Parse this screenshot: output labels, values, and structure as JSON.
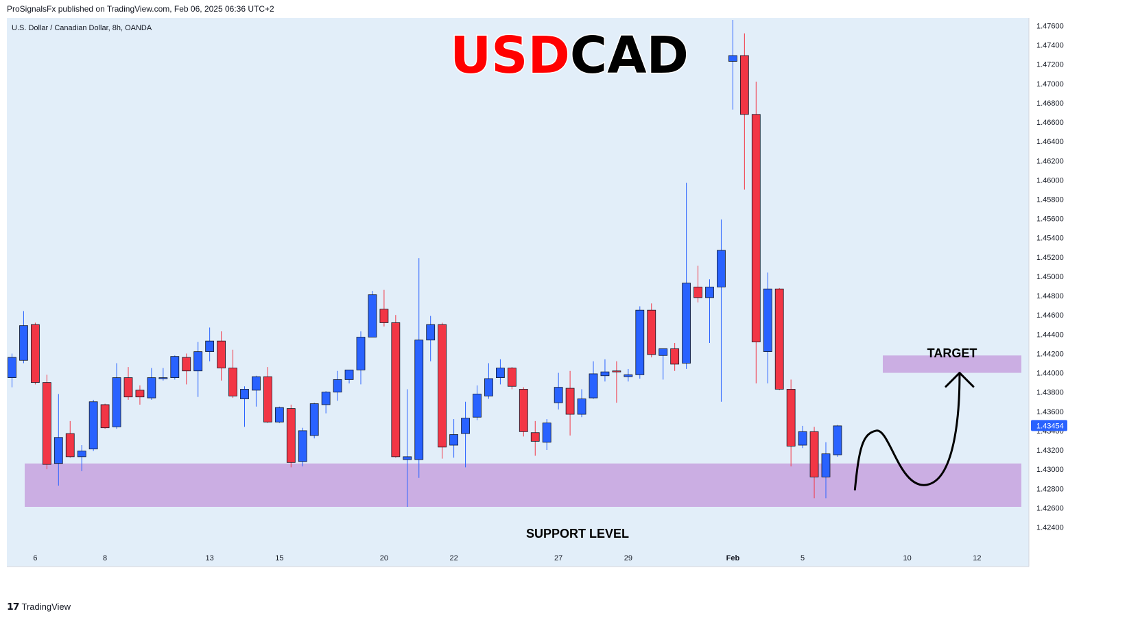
{
  "header": {
    "published": "ProSignalsFx published on TradingView.com, Feb 06, 2025 06:36 UTC+2"
  },
  "footer": {
    "brand": "TradingView",
    "brand_icon": "tradingview-logo-icon"
  },
  "colors": {
    "background": "#e2eef9",
    "up": "#2962ff",
    "down": "#f23645",
    "zone": "#c9a6e0",
    "current_price_bg": "#2962ff"
  },
  "chart_data": {
    "type": "candlestick",
    "symbol_label": "U.S. Dollar / Canadian Dollar, 8h, OANDA",
    "title_part1": "USD",
    "title_part2": "CAD",
    "current_price": "1.43454",
    "ylim": [
      1.4224,
      1.4766
    ],
    "y_ticks": [
      "1.47600",
      "1.47400",
      "1.47200",
      "1.47000",
      "1.46800",
      "1.46600",
      "1.46400",
      "1.46200",
      "1.46000",
      "1.45800",
      "1.45600",
      "1.45400",
      "1.45200",
      "1.45000",
      "1.44800",
      "1.44600",
      "1.44400",
      "1.44200",
      "1.44000",
      "1.43800",
      "1.43600",
      "1.43400",
      "1.43200",
      "1.43000",
      "1.42800",
      "1.42600",
      "1.42400"
    ],
    "x_ticks": [
      {
        "label": "6",
        "index": 2
      },
      {
        "label": "8",
        "index": 8
      },
      {
        "label": "13",
        "index": 17
      },
      {
        "label": "15",
        "index": 23
      },
      {
        "label": "20",
        "index": 32
      },
      {
        "label": "22",
        "index": 38
      },
      {
        "label": "27",
        "index": 47
      },
      {
        "label": "29",
        "index": 53
      },
      {
        "label": "Feb",
        "index": 62
      },
      {
        "label": "5",
        "index": 68
      },
      {
        "label": "10",
        "index": 77
      },
      {
        "label": "12",
        "index": 83
      }
    ],
    "candles": [
      {
        "o": 1.4395,
        "h": 1.442,
        "l": 1.4385,
        "c": 1.4416
      },
      {
        "o": 1.4413,
        "h": 1.4464,
        "l": 1.441,
        "c": 1.4449
      },
      {
        "o": 1.445,
        "h": 1.4452,
        "l": 1.4388,
        "c": 1.439
      },
      {
        "o": 1.439,
        "h": 1.4398,
        "l": 1.43,
        "c": 1.4305
      },
      {
        "o": 1.4306,
        "h": 1.4378,
        "l": 1.4283,
        "c": 1.4333
      },
      {
        "o": 1.4337,
        "h": 1.435,
        "l": 1.4312,
        "c": 1.4313
      },
      {
        "o": 1.4313,
        "h": 1.4325,
        "l": 1.4298,
        "c": 1.4319
      },
      {
        "o": 1.4321,
        "h": 1.4372,
        "l": 1.4319,
        "c": 1.437
      },
      {
        "o": 1.4367,
        "h": 1.4368,
        "l": 1.4342,
        "c": 1.4343
      },
      {
        "o": 1.4344,
        "h": 1.441,
        "l": 1.4342,
        "c": 1.4395
      },
      {
        "o": 1.4395,
        "h": 1.4406,
        "l": 1.4372,
        "c": 1.4375
      },
      {
        "o": 1.4382,
        "h": 1.4387,
        "l": 1.4367,
        "c": 1.4375
      },
      {
        "o": 1.4374,
        "h": 1.4405,
        "l": 1.4372,
        "c": 1.4395
      },
      {
        "o": 1.4395,
        "h": 1.4405,
        "l": 1.4392,
        "c": 1.4395
      },
      {
        "o": 1.4395,
        "h": 1.4418,
        "l": 1.4393,
        "c": 1.4417
      },
      {
        "o": 1.4416,
        "h": 1.442,
        "l": 1.4388,
        "c": 1.4402
      },
      {
        "o": 1.4402,
        "h": 1.4432,
        "l": 1.4375,
        "c": 1.4422
      },
      {
        "o": 1.4422,
        "h": 1.4447,
        "l": 1.4412,
        "c": 1.4433
      },
      {
        "o": 1.4433,
        "h": 1.4443,
        "l": 1.4392,
        "c": 1.4405
      },
      {
        "o": 1.4405,
        "h": 1.4424,
        "l": 1.4374,
        "c": 1.4376
      },
      {
        "o": 1.4373,
        "h": 1.4386,
        "l": 1.4344,
        "c": 1.4383
      },
      {
        "o": 1.4382,
        "h": 1.4397,
        "l": 1.4365,
        "c": 1.4396
      },
      {
        "o": 1.4396,
        "h": 1.4406,
        "l": 1.4348,
        "c": 1.4349
      },
      {
        "o": 1.4349,
        "h": 1.4365,
        "l": 1.4348,
        "c": 1.4364
      },
      {
        "o": 1.4363,
        "h": 1.4367,
        "l": 1.4302,
        "c": 1.4307
      },
      {
        "o": 1.4308,
        "h": 1.4343,
        "l": 1.4303,
        "c": 1.434
      },
      {
        "o": 1.4335,
        "h": 1.4369,
        "l": 1.4332,
        "c": 1.4368
      },
      {
        "o": 1.4367,
        "h": 1.4381,
        "l": 1.4358,
        "c": 1.438
      },
      {
        "o": 1.438,
        "h": 1.4402,
        "l": 1.4371,
        "c": 1.4393
      },
      {
        "o": 1.4393,
        "h": 1.4403,
        "l": 1.4389,
        "c": 1.4403
      },
      {
        "o": 1.4403,
        "h": 1.4443,
        "l": 1.4388,
        "c": 1.4437
      },
      {
        "o": 1.4437,
        "h": 1.4485,
        "l": 1.4437,
        "c": 1.4481
      },
      {
        "o": 1.4466,
        "h": 1.4486,
        "l": 1.4448,
        "c": 1.4452
      },
      {
        "o": 1.4452,
        "h": 1.446,
        "l": 1.4312,
        "c": 1.4313
      },
      {
        "o": 1.431,
        "h": 1.4383,
        "l": 1.4261,
        "c": 1.4313
      },
      {
        "o": 1.431,
        "h": 1.4519,
        "l": 1.4291,
        "c": 1.4434
      },
      {
        "o": 1.4434,
        "h": 1.4459,
        "l": 1.4412,
        "c": 1.445
      },
      {
        "o": 1.445,
        "h": 1.4452,
        "l": 1.4311,
        "c": 1.4323
      },
      {
        "o": 1.4325,
        "h": 1.4352,
        "l": 1.4312,
        "c": 1.4336
      },
      {
        "o": 1.4337,
        "h": 1.437,
        "l": 1.4302,
        "c": 1.4353
      },
      {
        "o": 1.4354,
        "h": 1.4387,
        "l": 1.4351,
        "c": 1.4378
      },
      {
        "o": 1.4376,
        "h": 1.441,
        "l": 1.4373,
        "c": 1.4394
      },
      {
        "o": 1.4395,
        "h": 1.4414,
        "l": 1.4388,
        "c": 1.4405
      },
      {
        "o": 1.4405,
        "h": 1.4406,
        "l": 1.4383,
        "c": 1.4386
      },
      {
        "o": 1.4383,
        "h": 1.4385,
        "l": 1.4334,
        "c": 1.4339
      },
      {
        "o": 1.4338,
        "h": 1.435,
        "l": 1.4314,
        "c": 1.4329
      },
      {
        "o": 1.4328,
        "h": 1.4352,
        "l": 1.432,
        "c": 1.4348
      },
      {
        "o": 1.4369,
        "h": 1.44,
        "l": 1.4362,
        "c": 1.4385
      },
      {
        "o": 1.4384,
        "h": 1.4402,
        "l": 1.4335,
        "c": 1.4357
      },
      {
        "o": 1.4357,
        "h": 1.4383,
        "l": 1.4354,
        "c": 1.4373
      },
      {
        "o": 1.4374,
        "h": 1.4412,
        "l": 1.4373,
        "c": 1.4399
      },
      {
        "o": 1.4397,
        "h": 1.4414,
        "l": 1.4391,
        "c": 1.4401
      },
      {
        "o": 1.4402,
        "h": 1.4412,
        "l": 1.4369,
        "c": 1.4401
      },
      {
        "o": 1.4396,
        "h": 1.4404,
        "l": 1.4391,
        "c": 1.4398
      },
      {
        "o": 1.4398,
        "h": 1.4469,
        "l": 1.4394,
        "c": 1.4465
      },
      {
        "o": 1.4465,
        "h": 1.4472,
        "l": 1.4416,
        "c": 1.4419
      },
      {
        "o": 1.4418,
        "h": 1.4425,
        "l": 1.4393,
        "c": 1.4425
      },
      {
        "o": 1.4425,
        "h": 1.4431,
        "l": 1.4402,
        "c": 1.4409
      },
      {
        "o": 1.441,
        "h": 1.4597,
        "l": 1.4404,
        "c": 1.4493
      },
      {
        "o": 1.4489,
        "h": 1.4511,
        "l": 1.4473,
        "c": 1.4478
      },
      {
        "o": 1.4478,
        "h": 1.4497,
        "l": 1.4431,
        "c": 1.4489
      },
      {
        "o": 1.4489,
        "h": 1.4559,
        "l": 1.437,
        "c": 1.4527
      },
      {
        "o": 1.4723,
        "h": 1.4766,
        "l": 1.4673,
        "c": 1.4729
      },
      {
        "o": 1.4729,
        "h": 1.4752,
        "l": 1.459,
        "c": 1.4668
      },
      {
        "o": 1.4668,
        "h": 1.4702,
        "l": 1.4389,
        "c": 1.4432
      },
      {
        "o": 1.4422,
        "h": 1.4504,
        "l": 1.4389,
        "c": 1.4487
      },
      {
        "o": 1.4487,
        "h": 1.4488,
        "l": 1.4382,
        "c": 1.4383
      },
      {
        "o": 1.4383,
        "h": 1.4393,
        "l": 1.4303,
        "c": 1.4324
      },
      {
        "o": 1.4325,
        "h": 1.4345,
        "l": 1.4322,
        "c": 1.4339
      },
      {
        "o": 1.4339,
        "h": 1.4344,
        "l": 1.427,
        "c": 1.4292
      },
      {
        "o": 1.4292,
        "h": 1.4328,
        "l": 1.427,
        "c": 1.4316
      },
      {
        "o": 1.4315,
        "h": 1.4346,
        "l": 1.4313,
        "c": 1.4345
      }
    ],
    "support_zone": {
      "label": "SUPPORT LEVEL",
      "from_index": 1,
      "to_index": 88,
      "low": 1.4261,
      "high": 1.4306
    },
    "target_zone": {
      "label": "TARGET",
      "from_index": 75,
      "to_index": 88,
      "low": 1.44,
      "high": 1.4418
    },
    "projection_path": [
      {
        "i": 72.5,
        "p": 1.4279
      },
      {
        "i": 73.5,
        "p": 1.433
      },
      {
        "i": 75.5,
        "p": 1.434
      },
      {
        "i": 77.5,
        "p": 1.4318
      },
      {
        "i": 79.5,
        "p": 1.4322
      },
      {
        "i": 81.5,
        "p": 1.4398
      }
    ],
    "arrow_tip": {
      "i": 81.5,
      "p": 1.44
    }
  }
}
